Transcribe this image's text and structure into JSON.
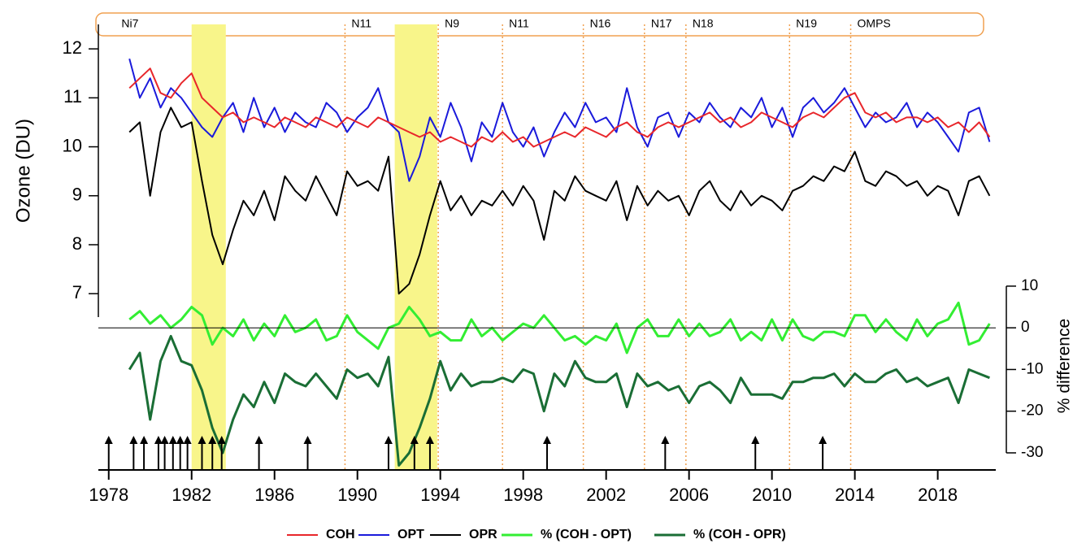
{
  "chart_data": {
    "type": "line",
    "ylabel": "Ozone (DU)",
    "y2label": "% difference",
    "xlim": [
      1977.5,
      2020.8
    ],
    "xticks": [
      1978,
      1982,
      1986,
      1990,
      1994,
      1998,
      2002,
      2006,
      2010,
      2014,
      2018
    ],
    "ylim": [
      3.4,
      12.5
    ],
    "yticks": [
      7,
      8,
      9,
      10,
      11,
      12
    ],
    "y2lim": [
      -34.1,
      72.8
    ],
    "y2ticks": [
      10,
      0,
      -10,
      -20,
      -30
    ],
    "highlight_periods": [
      [
        1982.0,
        1983.65
      ],
      [
        1991.8,
        1993.85
      ]
    ],
    "highlight_color": "#f8f58a",
    "instruments": [
      {
        "label": "Ni7",
        "start": 1978.3
      },
      {
        "label": "N11",
        "start": 1989.4
      },
      {
        "label": "N9",
        "start": 1993.9
      },
      {
        "label": "N11",
        "start": 1997.0
      },
      {
        "label": "N16",
        "start": 2000.9
      },
      {
        "label": "N17",
        "start": 2003.85
      },
      {
        "label": "N18",
        "start": 2005.85
      },
      {
        "label": "N19",
        "start": 2010.85
      },
      {
        "label": "OMPS",
        "start": 2013.8
      }
    ],
    "events": [
      1978.0,
      1979.2,
      1979.7,
      1980.4,
      1980.7,
      1981.1,
      1981.45,
      1981.8,
      1982.5,
      1983.0,
      1983.45,
      1985.25,
      1987.6,
      1991.5,
      1992.75,
      1993.5,
      1999.15,
      2004.85,
      2009.2,
      2012.45
    ],
    "x": [
      1979.0,
      1979.5,
      1980.0,
      1980.5,
      1981.0,
      1981.5,
      1982.0,
      1982.5,
      1983.0,
      1983.5,
      1984.0,
      1984.5,
      1985.0,
      1985.5,
      1986.0,
      1986.5,
      1987.0,
      1987.5,
      1988.0,
      1988.5,
      1989.0,
      1989.5,
      1990.0,
      1990.5,
      1991.0,
      1991.5,
      1992.0,
      1992.5,
      1993.0,
      1993.5,
      1994.0,
      1994.5,
      1995.0,
      1995.5,
      1996.0,
      1996.5,
      1997.0,
      1997.5,
      1998.0,
      1998.5,
      1999.0,
      1999.5,
      2000.0,
      2000.5,
      2001.0,
      2001.5,
      2002.0,
      2002.5,
      2003.0,
      2003.5,
      2004.0,
      2004.5,
      2005.0,
      2005.5,
      2006.0,
      2006.5,
      2007.0,
      2007.5,
      2008.0,
      2008.5,
      2009.0,
      2009.5,
      2010.0,
      2010.5,
      2011.0,
      2011.5,
      2012.0,
      2012.5,
      2013.0,
      2013.5,
      2014.0,
      2014.5,
      2015.0,
      2015.5,
      2016.0,
      2016.5,
      2017.0,
      2017.5,
      2018.0,
      2018.5,
      2019.0,
      2019.5,
      2020.0,
      2020.5
    ],
    "series": [
      {
        "name": "OPR",
        "color": "#000000",
        "values": [
          10.3,
          10.5,
          9.0,
          10.3,
          10.8,
          10.4,
          10.5,
          9.3,
          8.2,
          7.6,
          8.3,
          8.9,
          8.6,
          9.1,
          8.5,
          9.4,
          9.1,
          8.9,
          9.4,
          9.0,
          8.6,
          9.5,
          9.2,
          9.3,
          9.1,
          9.8,
          7.0,
          7.2,
          7.8,
          8.6,
          9.3,
          8.7,
          9.0,
          8.6,
          8.9,
          8.8,
          9.1,
          8.8,
          9.2,
          8.9,
          8.1,
          9.1,
          8.9,
          9.4,
          9.1,
          9.0,
          8.9,
          9.3,
          8.5,
          9.2,
          8.8,
          9.1,
          8.9,
          9.0,
          8.6,
          9.1,
          9.3,
          8.9,
          8.7,
          9.1,
          8.8,
          9.0,
          8.9,
          8.7,
          9.1,
          9.2,
          9.4,
          9.3,
          9.6,
          9.5,
          9.9,
          9.3,
          9.2,
          9.5,
          9.4,
          9.2,
          9.3,
          9.0,
          9.2,
          9.1,
          8.6,
          9.3,
          9.4,
          9.0
        ]
      },
      {
        "name": "OPT",
        "color": "#1a1adb",
        "values": [
          11.8,
          11.0,
          11.4,
          10.8,
          11.2,
          11.0,
          10.7,
          10.4,
          10.2,
          10.6,
          10.9,
          10.3,
          11.0,
          10.4,
          10.8,
          10.3,
          10.7,
          10.5,
          10.4,
          10.9,
          10.7,
          10.3,
          10.6,
          10.8,
          11.2,
          10.5,
          10.3,
          9.3,
          9.8,
          10.6,
          10.2,
          10.9,
          10.4,
          9.7,
          10.5,
          10.2,
          10.9,
          10.3,
          10.0,
          10.4,
          9.8,
          10.3,
          10.7,
          10.4,
          10.9,
          10.5,
          10.6,
          10.3,
          11.2,
          10.4,
          10.0,
          10.6,
          10.7,
          10.2,
          10.7,
          10.5,
          10.9,
          10.6,
          10.4,
          10.8,
          10.6,
          11.0,
          10.4,
          10.8,
          10.2,
          10.8,
          11.0,
          10.7,
          10.9,
          11.2,
          10.8,
          10.4,
          10.7,
          10.5,
          10.6,
          10.9,
          10.4,
          10.7,
          10.5,
          10.2,
          9.9,
          10.7,
          10.8,
          10.1
        ]
      },
      {
        "name": "COH",
        "color": "#e8262b",
        "values": [
          11.2,
          11.4,
          11.6,
          11.1,
          11.0,
          11.3,
          11.5,
          11.0,
          10.8,
          10.6,
          10.7,
          10.5,
          10.6,
          10.5,
          10.4,
          10.6,
          10.5,
          10.4,
          10.6,
          10.5,
          10.4,
          10.6,
          10.5,
          10.4,
          10.6,
          10.5,
          10.4,
          10.3,
          10.2,
          10.3,
          10.1,
          10.2,
          10.1,
          10.0,
          10.2,
          10.1,
          10.3,
          10.1,
          10.2,
          10.0,
          10.1,
          10.2,
          10.3,
          10.2,
          10.4,
          10.3,
          10.2,
          10.4,
          10.5,
          10.3,
          10.2,
          10.4,
          10.5,
          10.4,
          10.5,
          10.6,
          10.7,
          10.5,
          10.6,
          10.4,
          10.5,
          10.7,
          10.6,
          10.5,
          10.4,
          10.6,
          10.7,
          10.6,
          10.8,
          11.0,
          11.1,
          10.7,
          10.6,
          10.7,
          10.5,
          10.6,
          10.6,
          10.5,
          10.6,
          10.4,
          10.5,
          10.3,
          10.5,
          10.2
        ]
      },
      {
        "name": "% (COH - OPT)",
        "color": "#33ee33",
        "axis": "y2",
        "values": [
          2,
          4,
          1,
          3,
          0,
          2,
          5,
          3,
          -4,
          0,
          -2,
          2,
          -3,
          1,
          -2,
          3,
          -1,
          0,
          2,
          -3,
          -2,
          3,
          -1,
          -3,
          -5,
          0,
          1,
          5,
          2,
          -2,
          -1,
          -3,
          -3,
          2,
          -2,
          0,
          -3,
          -1,
          1,
          0,
          3,
          0,
          -3,
          -2,
          -4,
          -2,
          -3,
          1,
          -6,
          0,
          2,
          -2,
          -2,
          2,
          -2,
          1,
          -2,
          -1,
          2,
          -3,
          -1,
          -3,
          2,
          -3,
          2,
          -2,
          -3,
          -1,
          -1,
          -2,
          3,
          3,
          -1,
          2,
          -1,
          -3,
          2,
          -2,
          1,
          2,
          6,
          -4,
          -3,
          1
        ]
      },
      {
        "name": "% (COH - OPR)",
        "color": "#1a6e35",
        "axis": "y2",
        "values": [
          -10,
          -6,
          -22,
          -8,
          -2,
          -8,
          -9,
          -15,
          -24,
          -30,
          -22,
          -16,
          -19,
          -13,
          -18,
          -11,
          -13,
          -14,
          -11,
          -14,
          -17,
          -10,
          -12,
          -11,
          -14,
          -7,
          -33,
          -30,
          -24,
          -17,
          -8,
          -15,
          -11,
          -14,
          -13,
          -13,
          -12,
          -13,
          -10,
          -11,
          -20,
          -11,
          -14,
          -8,
          -12,
          -13,
          -13,
          -11,
          -19,
          -11,
          -14,
          -13,
          -15,
          -14,
          -18,
          -14,
          -13,
          -15,
          -18,
          -12,
          -16,
          -16,
          -16,
          -17,
          -13,
          -13,
          -12,
          -12,
          -11,
          -14,
          -11,
          -13,
          -13,
          -11,
          -10,
          -13,
          -12,
          -14,
          -13,
          -12,
          -18,
          -10,
          -11,
          -12
        ]
      }
    ],
    "legend_order": [
      2,
      1,
      0,
      3,
      4
    ]
  }
}
